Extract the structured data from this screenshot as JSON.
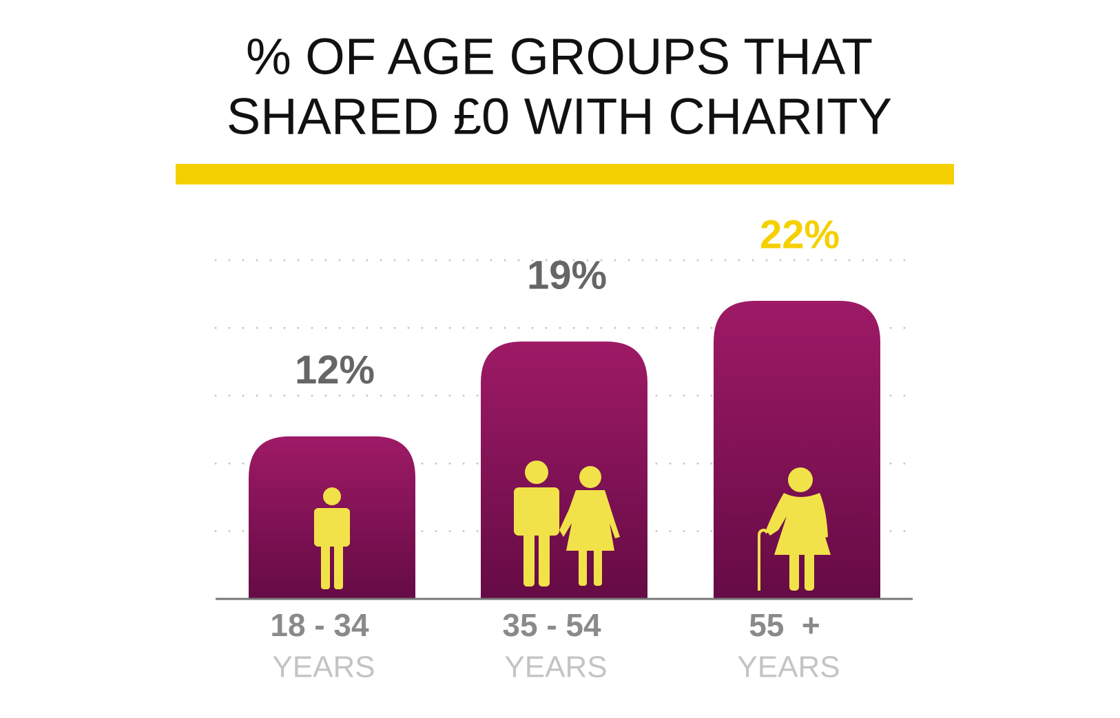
{
  "chart_data": {
    "type": "bar",
    "title": [
      "% OF AGE GROUPS THAT",
      "SHARED £0 WITH CHARITY"
    ],
    "categories": [
      "18 - 34",
      "35 - 54",
      "55  +"
    ],
    "category_sublabels": [
      "YEARS",
      "YEARS",
      "YEARS"
    ],
    "values": [
      12,
      19,
      22
    ],
    "value_labels": [
      "12%",
      "19%",
      "22%"
    ],
    "value_label_colors": [
      "#666666",
      "#666666",
      "#f5d000"
    ],
    "color": [
      "#9e1a66",
      "#650b45"
    ],
    "ylim": [
      0,
      25
    ],
    "yticks": [
      0,
      5,
      10,
      15,
      20,
      25
    ],
    "grid": true
  }
}
